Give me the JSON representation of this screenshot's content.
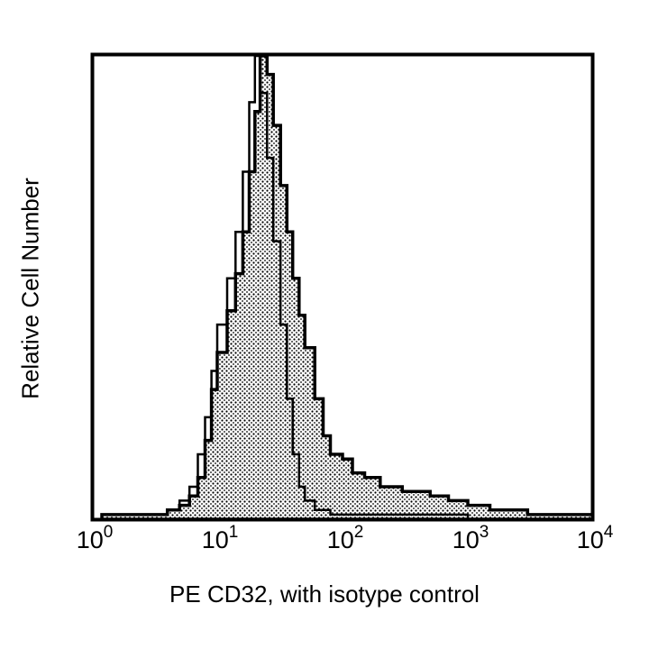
{
  "chart_data": {
    "type": "area",
    "subtype": "flow cytometry histogram overlay",
    "title": "",
    "xlabel": "PE CD32, with isotype control",
    "ylabel": "Relative Cell Number",
    "xscale": "log",
    "xlim": [
      1,
      10000
    ],
    "ylim": [
      0,
      100
    ],
    "x_ticks": [
      {
        "base": "10",
        "exp": "0"
      },
      {
        "base": "10",
        "exp": "1"
      },
      {
        "base": "10",
        "exp": "2"
      },
      {
        "base": "10",
        "exp": "3"
      },
      {
        "base": "10",
        "exp": "4"
      }
    ],
    "grid": false,
    "legend": null,
    "series": [
      {
        "name": "PE CD32",
        "style": "black outline, dotted/stippled fill",
        "x": [
          1.2,
          3,
          4,
          5,
          6,
          7,
          8,
          9,
          10,
          12,
          14,
          16,
          18,
          20,
          22,
          25,
          28,
          32,
          36,
          40,
          45,
          50,
          60,
          70,
          80,
          100,
          120,
          150,
          200,
          300,
          400,
          500,
          700,
          1000,
          1500,
          2000,
          3000,
          5000,
          7000,
          10000
        ],
        "values": [
          1,
          1,
          2,
          3,
          5,
          9,
          17,
          28,
          36,
          45,
          53,
          62,
          75,
          88,
          100,
          96,
          85,
          72,
          62,
          52,
          44,
          37,
          26,
          18,
          14,
          13,
          10,
          9,
          7,
          6,
          6,
          5,
          4,
          3,
          2,
          2,
          1,
          1,
          1,
          0
        ]
      },
      {
        "name": "Isotype control",
        "style": "thin black outline, unfilled",
        "x": [
          1.2,
          3,
          4,
          5,
          6,
          7,
          8,
          9,
          10,
          12,
          14,
          16,
          18,
          20,
          22,
          25,
          28,
          32,
          36,
          40,
          45,
          50,
          60,
          80,
          100,
          200,
          1000,
          10000
        ],
        "values": [
          1,
          1,
          2,
          4,
          7,
          14,
          22,
          32,
          42,
          52,
          62,
          75,
          90,
          100,
          92,
          78,
          60,
          42,
          26,
          14,
          7,
          4,
          2,
          1,
          1,
          1,
          0,
          0
        ]
      }
    ]
  }
}
